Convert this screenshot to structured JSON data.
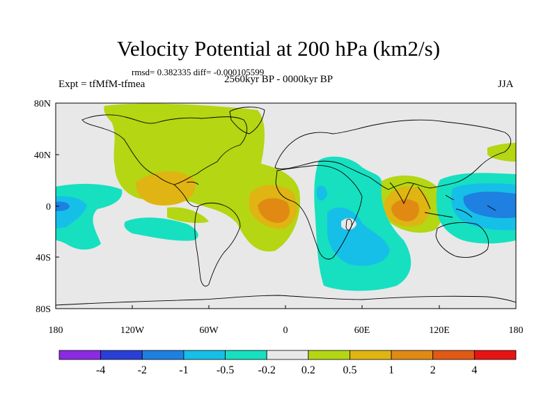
{
  "title": "Velocity Potential at 200 hPa (km2/s)",
  "stats": "rmsd= 0.382335 diff= -0.000105599",
  "period": "2560kyr BP - 0000kyr BP",
  "experiment": "Expt = tfMfM-tfmea",
  "season": "JJA",
  "axes": {
    "x_ticks": [
      "180",
      "120W",
      "60W",
      "0",
      "60E",
      "120E",
      "180"
    ],
    "y_ticks": [
      "80N",
      "40N",
      "0",
      "40S",
      "80S"
    ]
  },
  "colorbar": {
    "labels": [
      "-4",
      "-2",
      "-1",
      "-0.5",
      "-0.2",
      "0.2",
      "0.5",
      "1",
      "2",
      "4"
    ],
    "colors": [
      "#8a2be2",
      "#2a3fd6",
      "#1e80e0",
      "#16bfe8",
      "#16e0c0",
      "#e8e8e8",
      "#b4d613",
      "#e0b412",
      "#e08a14",
      "#e05a14",
      "#e81414"
    ]
  },
  "palette": {
    "neutral": "#e8e8e8",
    "pos_weak": "#b4d613",
    "pos_mid": "#e0b412",
    "pos_strong": "#e08a14",
    "neg_weak": "#16e0c0",
    "neg_mid": "#16bfe8",
    "neg_strong": "#1e80e0"
  }
}
